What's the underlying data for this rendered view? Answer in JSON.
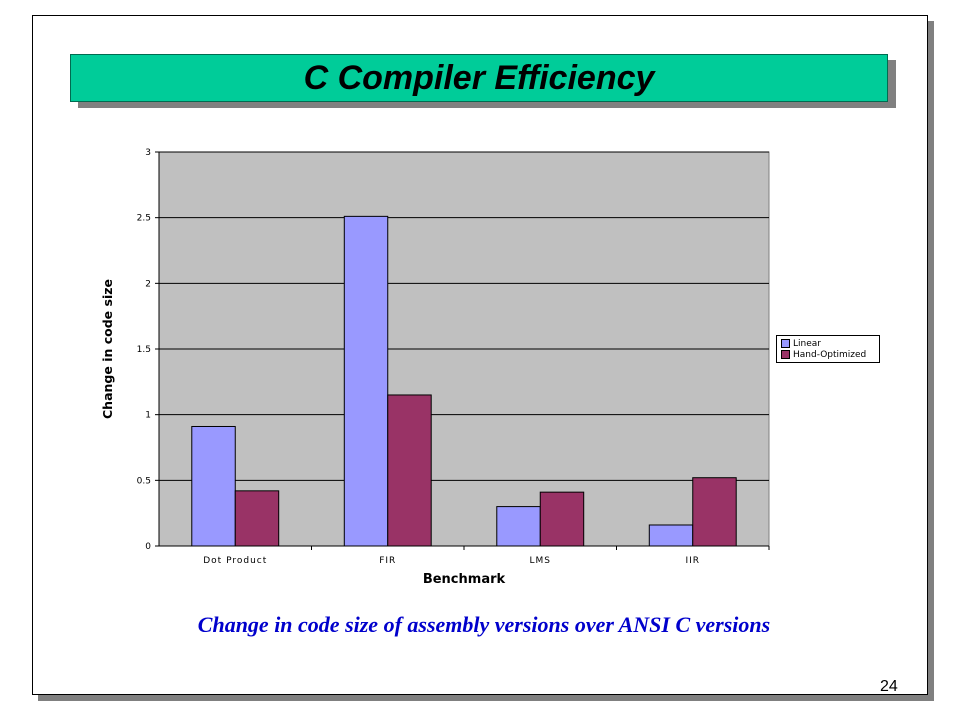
{
  "slide": {
    "title": "C Compiler Efficiency",
    "caption": "Change in code size of assembly versions over ANSI C versions",
    "page_number": "24"
  },
  "colors": {
    "title_bar": "#00cc99",
    "plot_background": "#c0c0c0",
    "caption_text": "#0000cc"
  },
  "chart_data": {
    "type": "bar",
    "title": "",
    "xlabel": "Benchmark",
    "ylabel": "Change in code size",
    "categories": [
      "Dot Product",
      "FIR",
      "LMS",
      "IIR"
    ],
    "series": [
      {
        "name": "Linear",
        "color": "#9999ff",
        "values": [
          0.91,
          2.51,
          0.3,
          0.16
        ]
      },
      {
        "name": "Hand-Optimized",
        "color": "#993366",
        "values": [
          0.42,
          1.15,
          0.41,
          0.52
        ]
      }
    ],
    "ylim": [
      0,
      3
    ],
    "yticks": [
      "0",
      "0.5",
      "1",
      "1.5",
      "2",
      "2.5",
      "3"
    ],
    "grid": true,
    "legend_position": "right"
  }
}
